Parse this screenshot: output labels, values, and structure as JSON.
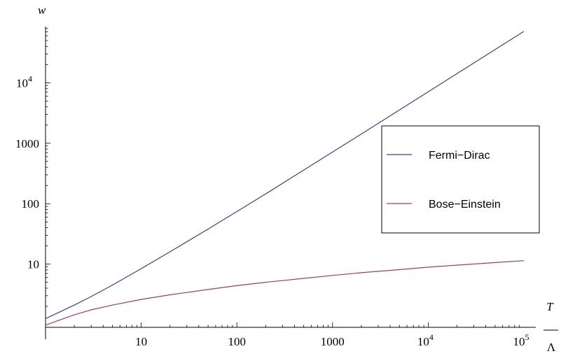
{
  "chart_data": {
    "type": "line",
    "xscale": "log",
    "yscale": "log",
    "xlim": [
      1,
      100000
    ],
    "ylim": [
      1,
      100000
    ],
    "ylabel": "w",
    "xlabel_numerator": "T",
    "xlabel_denominator": "Λ",
    "x_ticks": [
      {
        "value": 10,
        "base": "10",
        "exp": ""
      },
      {
        "value": 100,
        "base": "100",
        "exp": ""
      },
      {
        "value": 1000,
        "base": "1000",
        "exp": ""
      },
      {
        "value": 10000,
        "base": "10",
        "exp": "4"
      },
      {
        "value": 100000,
        "base": "10",
        "exp": "5"
      }
    ],
    "y_ticks": [
      {
        "value": 10,
        "base": "10",
        "exp": ""
      },
      {
        "value": 100,
        "base": "100",
        "exp": ""
      },
      {
        "value": 1000,
        "base": "1000",
        "exp": ""
      },
      {
        "value": 10000,
        "base": "10",
        "exp": "4"
      }
    ],
    "legend_position": "right",
    "series": [
      {
        "name": "Fermi−Dirac",
        "color": "#3c3c9c",
        "x": [
          1,
          2,
          3,
          5,
          10,
          20,
          50,
          100,
          200,
          500,
          1000,
          2000,
          5000,
          10000,
          20000,
          50000,
          100000
        ],
        "y": [
          1.25,
          2.1,
          2.9,
          4.5,
          8.4,
          16,
          38,
          74,
          145,
          360,
          715,
          1420,
          3550,
          7100,
          14200,
          35500,
          71000
        ]
      },
      {
        "name": "Bose−Einstein",
        "color": "#9c3c6e",
        "x": [
          1,
          2,
          3,
          5,
          10,
          20,
          50,
          100,
          200,
          500,
          1000,
          2000,
          5000,
          10000,
          20000,
          50000,
          100000
        ],
        "y": [
          0.98,
          1.45,
          1.75,
          2.1,
          2.6,
          3.1,
          3.8,
          4.4,
          5.0,
          5.8,
          6.5,
          7.2,
          8.1,
          8.9,
          9.6,
          10.6,
          11.4
        ]
      }
    ]
  }
}
